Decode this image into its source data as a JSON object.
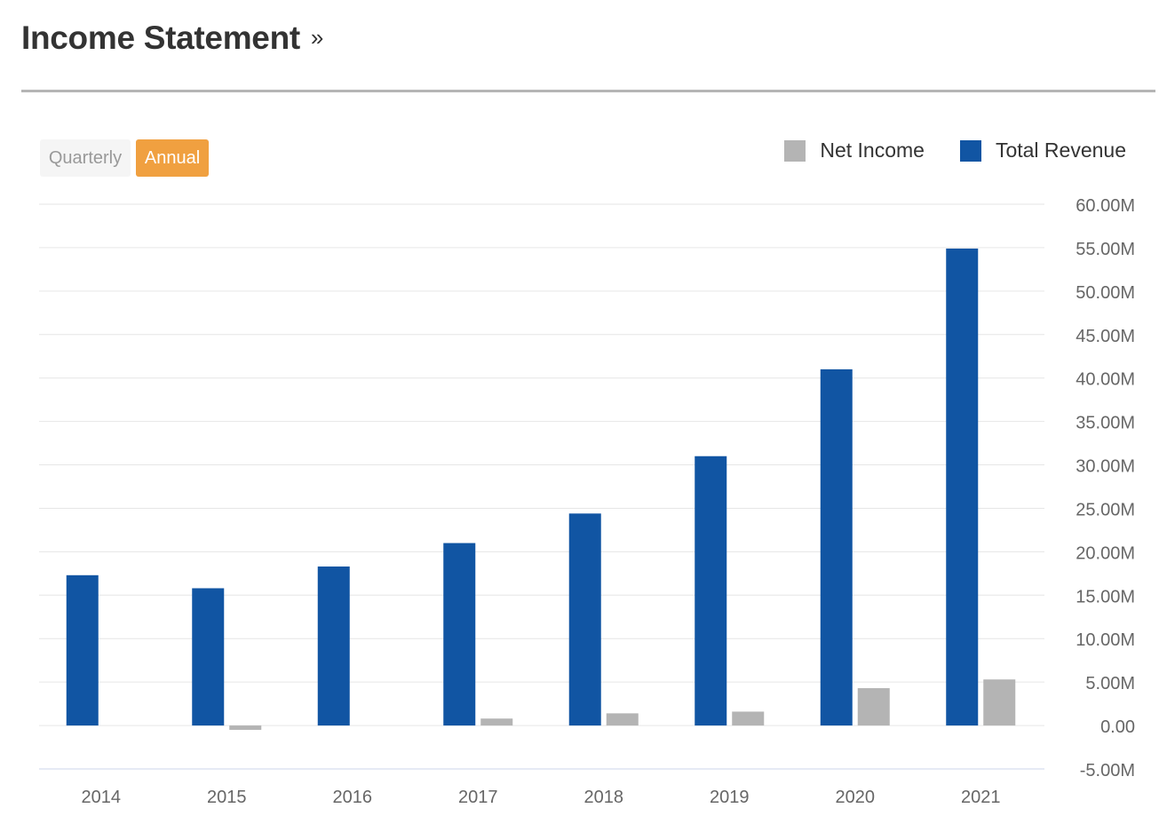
{
  "header": {
    "title": "Income Statement",
    "arrow": "»"
  },
  "period_toggle": {
    "options": [
      "Quarterly",
      "Annual"
    ],
    "selected": "Annual"
  },
  "colors": {
    "net_income": "#b4b4b4",
    "total_revenue": "#1155a3",
    "accent": "#f0a040"
  },
  "chart_data": {
    "type": "bar",
    "categories": [
      "2014",
      "2015",
      "2016",
      "2017",
      "2018",
      "2019",
      "2020",
      "2021"
    ],
    "series": [
      {
        "name": "Total Revenue",
        "values": [
          17.3,
          15.8,
          18.3,
          21.0,
          24.4,
          31.0,
          41.0,
          54.9
        ]
      },
      {
        "name": "Net Income",
        "values": [
          0,
          -0.5,
          0,
          0.8,
          1.4,
          1.6,
          4.3,
          5.3
        ]
      }
    ],
    "legend": [
      "Net Income",
      "Total Revenue"
    ],
    "legend_position": "top-right",
    "y_axis_position": "right",
    "yticks": [
      "60.00M",
      "55.00M",
      "50.00M",
      "45.00M",
      "40.00M",
      "35.00M",
      "30.00M",
      "25.00M",
      "20.00M",
      "15.00M",
      "10.00M",
      "5.00M",
      "0.00",
      "-5.00M"
    ],
    "ylim": [
      -5,
      60
    ],
    "units": "M",
    "grid": true
  }
}
